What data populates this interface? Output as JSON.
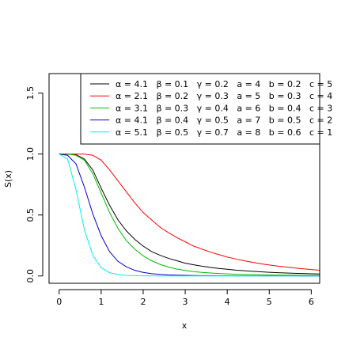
{
  "chart_data": {
    "type": "line",
    "title": "",
    "xlabel": "x",
    "ylabel": "S(x)",
    "xlim": [
      -0.24,
      6.2
    ],
    "ylim": [
      -0.06,
      1.66
    ],
    "xticks": [
      0,
      1,
      2,
      3,
      4,
      5,
      6
    ],
    "yticks": [
      0.0,
      0.5,
      1.0,
      1.5
    ],
    "xtick_labels": [
      "0",
      "1",
      "2",
      "3",
      "4",
      "5",
      "6"
    ],
    "ytick_labels": [
      "0.0",
      "0.5",
      "1.0",
      "1.5"
    ],
    "grid": false,
    "legend_position": "top-right",
    "x": [
      0,
      0.2,
      0.4,
      0.6,
      0.8,
      1.0,
      1.2,
      1.4,
      1.6,
      1.8,
      2.0,
      2.2,
      2.4,
      2.6,
      2.8,
      3.0,
      3.2,
      3.4,
      3.6,
      3.8,
      4.0,
      4.2,
      4.4,
      4.6,
      4.8,
      5.0,
      5.2,
      5.4,
      5.6,
      5.8,
      6.0,
      6.2
    ],
    "series": [
      {
        "name": "α = 4.1   β = 0.1   γ = 0.2   a = 4   b = 0.2   c = 5",
        "color": "#000000",
        "values": [
          1.0,
          1.0,
          0.995,
          0.96,
          0.87,
          0.72,
          0.58,
          0.46,
          0.37,
          0.3,
          0.245,
          0.2,
          0.17,
          0.145,
          0.125,
          0.105,
          0.092,
          0.08,
          0.07,
          0.062,
          0.055,
          0.048,
          0.043,
          0.038,
          0.034,
          0.03,
          0.027,
          0.024,
          0.022,
          0.02,
          0.018,
          0.016
        ]
      },
      {
        "name": "α = 2.1   β = 0.2   γ = 0.3   a = 5   b = 0.3   c = 4",
        "color": "#ff0000",
        "values": [
          1.0,
          1.0,
          1.0,
          1.0,
          0.99,
          0.95,
          0.87,
          0.78,
          0.69,
          0.6,
          0.52,
          0.46,
          0.4,
          0.355,
          0.315,
          0.28,
          0.245,
          0.22,
          0.195,
          0.175,
          0.155,
          0.14,
          0.125,
          0.112,
          0.1,
          0.09,
          0.081,
          0.073,
          0.066,
          0.059,
          0.053,
          0.047
        ]
      },
      {
        "name": "α = 3.1   β = 0.3   γ = 0.4   a = 6   b = 0.4   c = 3",
        "color": "#00bb00",
        "values": [
          1.0,
          1.0,
          0.99,
          0.95,
          0.84,
          0.68,
          0.52,
          0.39,
          0.29,
          0.22,
          0.165,
          0.125,
          0.095,
          0.073,
          0.057,
          0.045,
          0.036,
          0.029,
          0.024,
          0.02,
          0.017,
          0.014,
          0.012,
          0.011,
          0.0095,
          0.0085,
          0.0075,
          0.0068,
          0.0062,
          0.0056,
          0.005,
          0.0046
        ]
      },
      {
        "name": "α = 4.1   β = 0.4   γ = 0.5   a = 7   b = 0.5   c = 2",
        "color": "#0000cc",
        "values": [
          1.0,
          0.99,
          0.92,
          0.73,
          0.51,
          0.33,
          0.2,
          0.12,
          0.075,
          0.046,
          0.029,
          0.019,
          0.013,
          0.009,
          0.0065,
          0.0048,
          0.0036,
          0.0028,
          0.0022,
          0.0018,
          0.0015,
          0.0012,
          0.001,
          0.0009,
          0.0008,
          0.0007,
          0.0006,
          0.0005,
          0.0005,
          0.0004,
          0.0004,
          0.0003
        ]
      },
      {
        "name": "α = 5.1   β = 0.5   γ = 0.7   a = 8   b = 0.6   c = 1",
        "color": "#00eeee",
        "values": [
          1.0,
          0.96,
          0.71,
          0.38,
          0.17,
          0.068,
          0.027,
          0.011,
          0.005,
          0.0024,
          0.0012,
          0.0006,
          0.0003,
          0.0002,
          0.0001,
          0.0001,
          0.0,
          0.0,
          0.0,
          0.0,
          0.0,
          0.0,
          0.0,
          0.0,
          0.0,
          0.0,
          0.0,
          0.0,
          0.0,
          0.0,
          0.0,
          0.0
        ]
      }
    ]
  }
}
